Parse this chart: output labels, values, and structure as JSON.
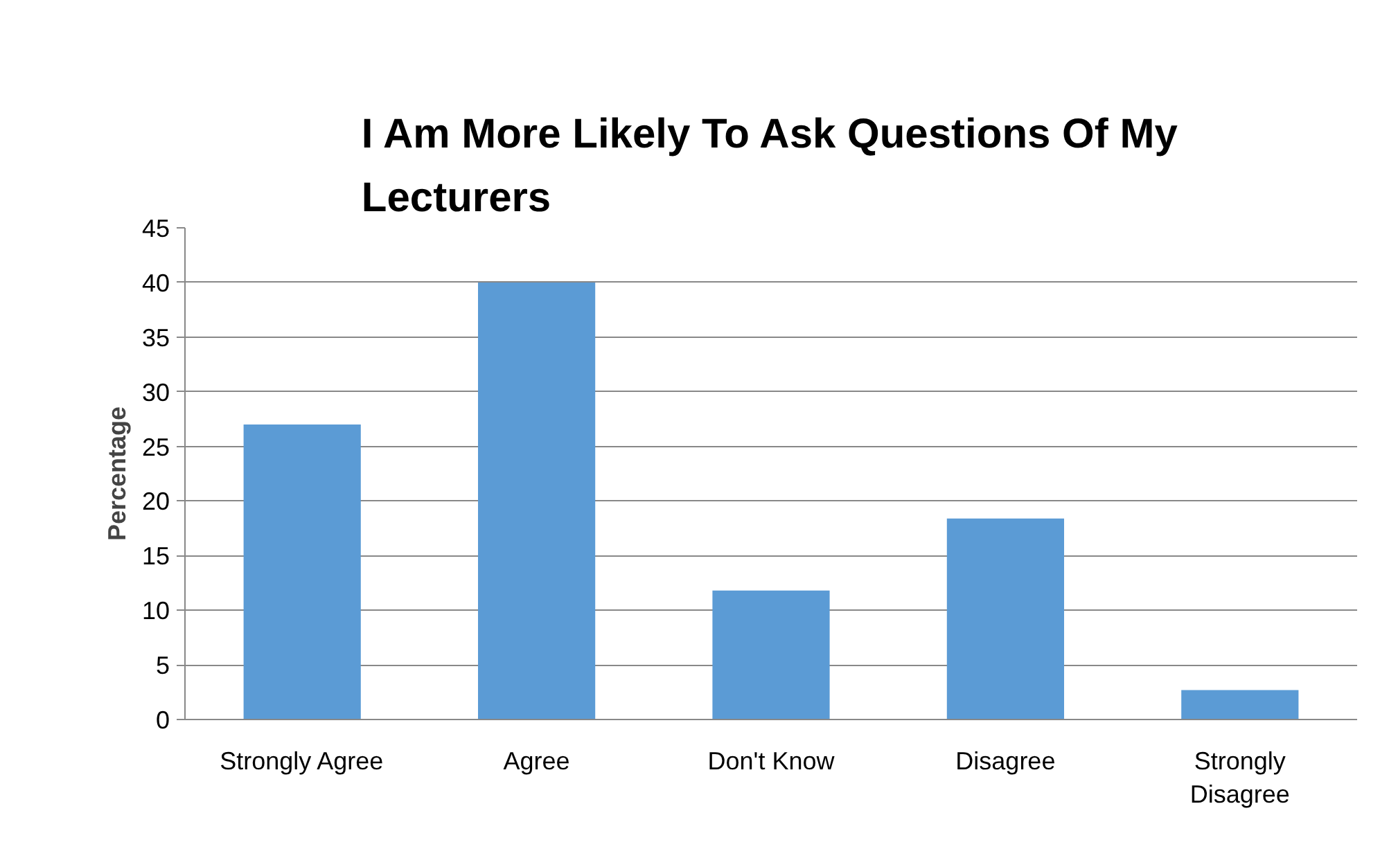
{
  "chart_data": {
    "type": "bar",
    "title": "I Am More Likely To Ask Questions Of My Lecturers",
    "ylabel": "Percentage",
    "categories": [
      "Strongly Agree",
      "Agree",
      "Don't Know",
      "Disagree",
      "Strongly Disagree"
    ],
    "values": [
      27,
      40,
      11.8,
      18.4,
      2.7
    ],
    "color": "#5b9bd5",
    "ylim": [
      0,
      45
    ],
    "yticks": [
      0,
      5,
      10,
      15,
      20,
      25,
      30,
      35,
      40,
      45
    ],
    "grid": "y"
  }
}
